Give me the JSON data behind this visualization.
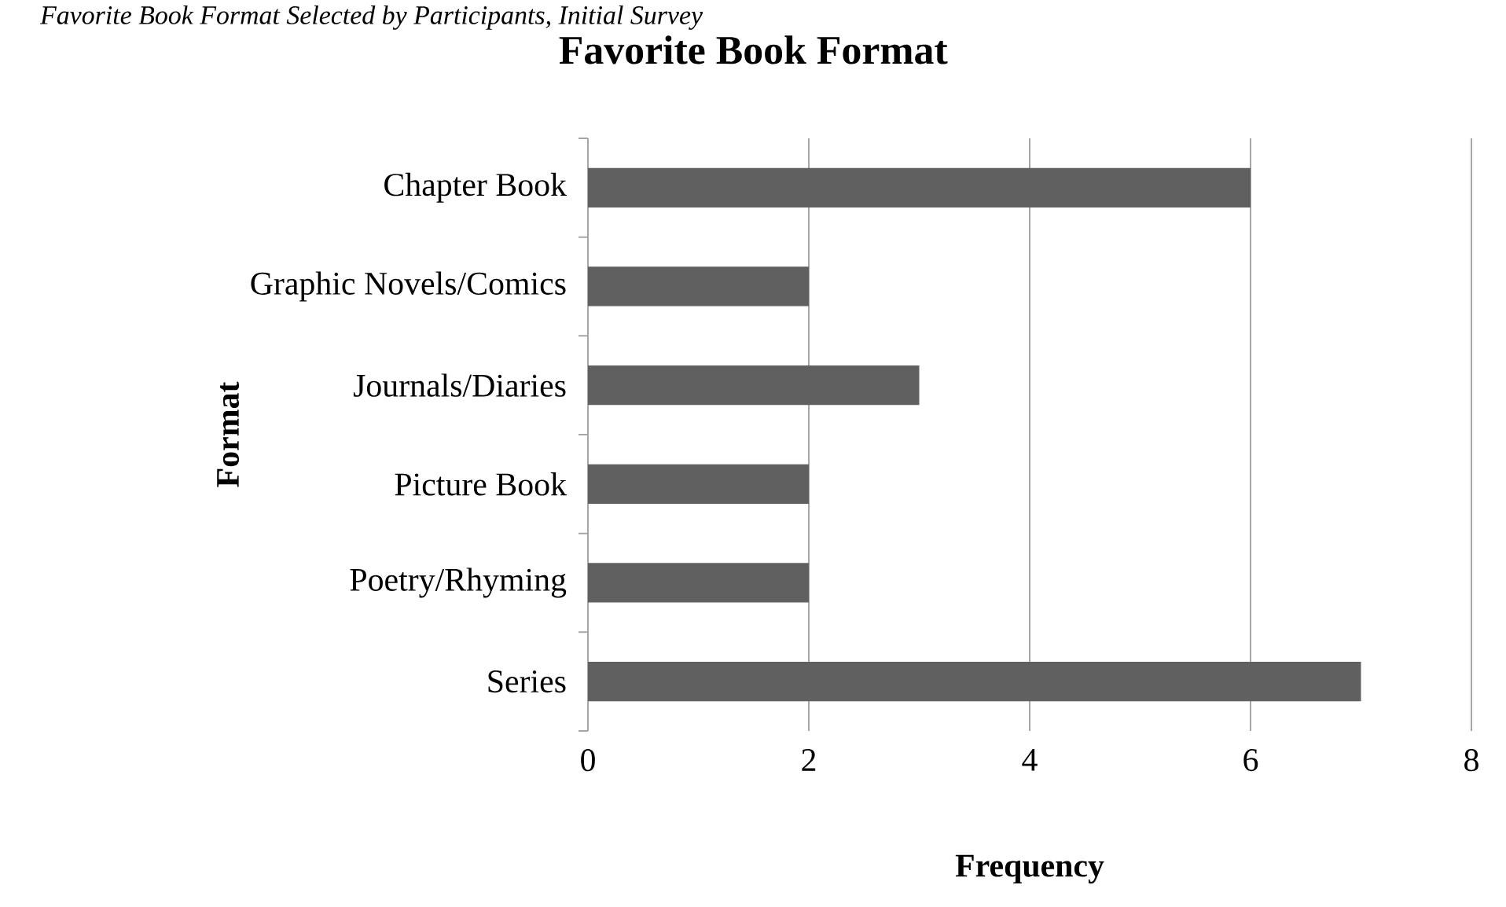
{
  "chart_data": {
    "type": "bar",
    "orientation": "horizontal",
    "title": "Favorite Book Format",
    "annotations": [
      "Favorite Book Format Selected by Participants, Initial Survey"
    ],
    "xlabel": "Frequency",
    "ylabel": "Format",
    "categories": [
      "Chapter Book",
      "Graphic Novels/Comics",
      "Journals/Diaries",
      "Picture Book",
      "Poetry/Rhyming",
      "Series"
    ],
    "values": [
      6,
      2,
      3,
      2,
      2,
      7
    ],
    "color": "#606060",
    "xlim": [
      0,
      8
    ],
    "xticks": [
      0,
      2,
      4,
      6,
      8
    ],
    "grid": "x"
  }
}
